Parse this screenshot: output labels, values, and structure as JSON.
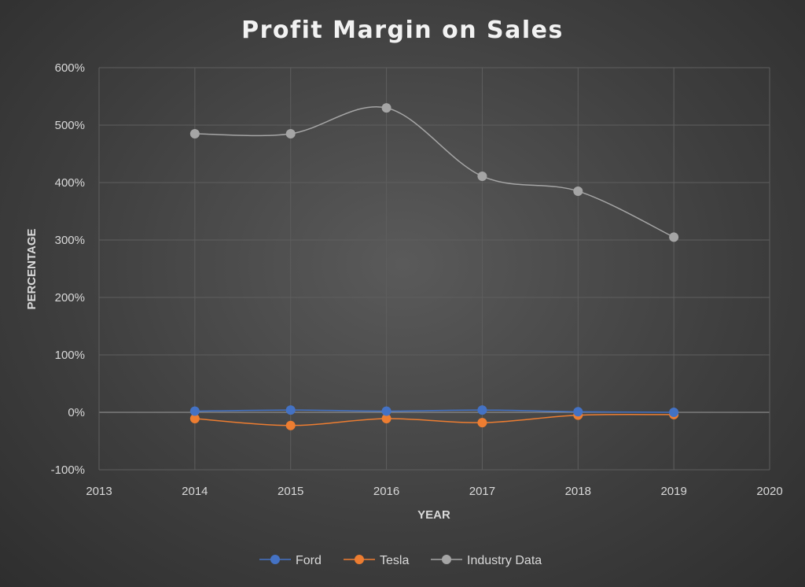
{
  "chart_data": {
    "type": "line",
    "title": "Profit Margin on Sales",
    "xlabel": "YEAR",
    "ylabel": "PERCENTAGE",
    "xlim": [
      2013,
      2020
    ],
    "ylim": [
      -100,
      600
    ],
    "x_ticks": [
      "2013",
      "2014",
      "2015",
      "2016",
      "2017",
      "2018",
      "2019",
      "2020"
    ],
    "y_ticks": [
      "-100%",
      "0%",
      "100%",
      "200%",
      "300%",
      "400%",
      "500%",
      "600%"
    ],
    "grid": true,
    "smooth": true,
    "legend_position": "bottom",
    "x": [
      2014,
      2015,
      2016,
      2017,
      2018,
      2019
    ],
    "series": [
      {
        "name": "Ford",
        "color": "#4472c4",
        "values": [
          2,
          4,
          2,
          4,
          1,
          0
        ]
      },
      {
        "name": "Tesla",
        "color": "#ed7d31",
        "values": [
          -11,
          -23,
          -11,
          -18,
          -5,
          -4
        ]
      },
      {
        "name": "Industry Data",
        "color": "#a5a5a5",
        "values": [
          485,
          485,
          530,
          411,
          385,
          305
        ]
      }
    ]
  }
}
